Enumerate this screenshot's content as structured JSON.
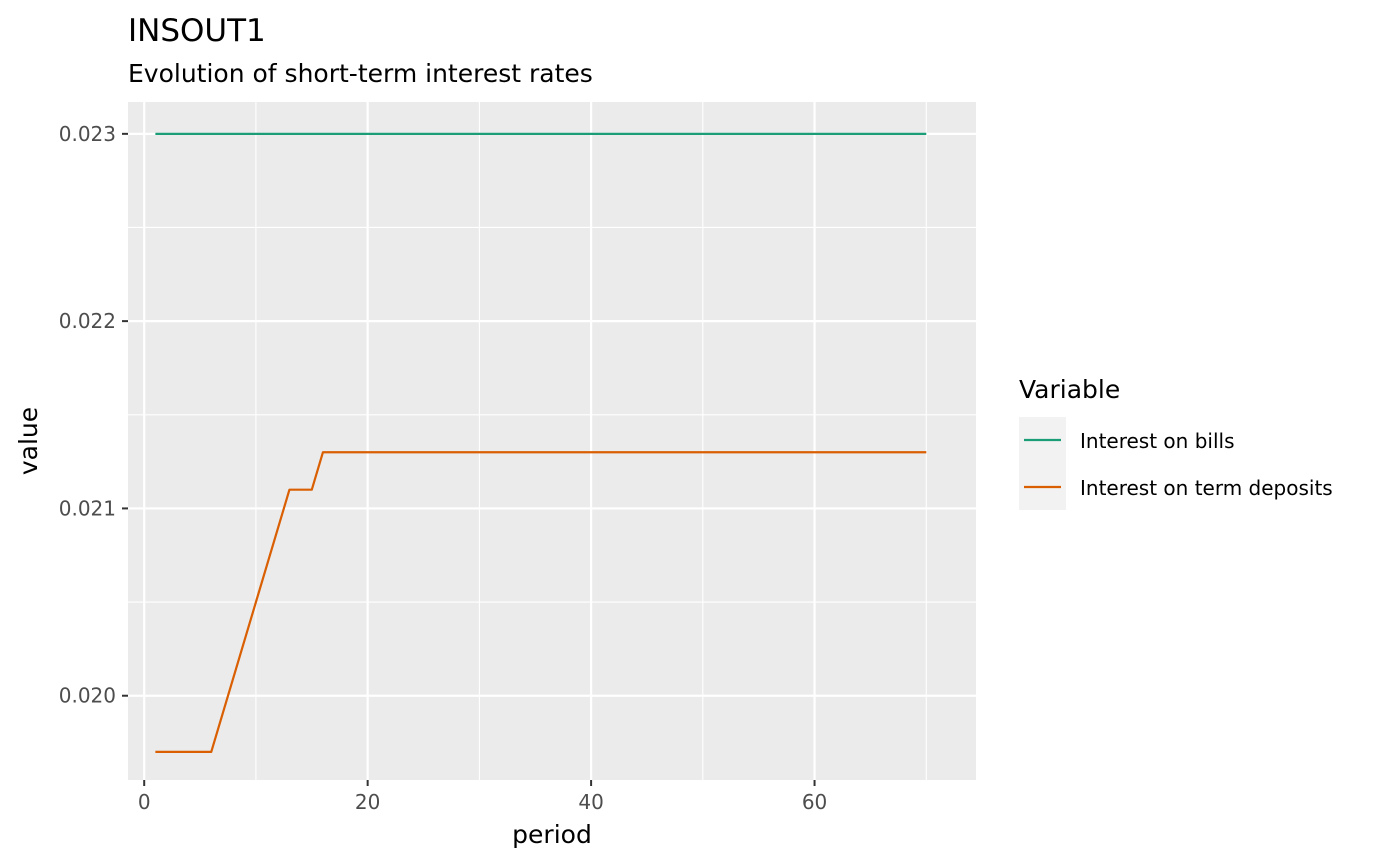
{
  "chart_data": {
    "type": "line",
    "title": "INSOUT1",
    "subtitle": "Evolution of short-term interest rates",
    "xlabel": "period",
    "ylabel": "value",
    "xlim": [
      -1.45,
      74.45
    ],
    "ylim": [
      0.01955,
      0.02317
    ],
    "x_ticks": [
      {
        "value": 0,
        "label": "0"
      },
      {
        "value": 20,
        "label": "20"
      },
      {
        "value": 40,
        "label": "40"
      },
      {
        "value": 60,
        "label": "60"
      }
    ],
    "x_minor_ticks": [
      10,
      30,
      50,
      70
    ],
    "y_ticks": [
      {
        "value": 0.02,
        "label": "0.020"
      },
      {
        "value": 0.021,
        "label": "0.021"
      },
      {
        "value": 0.022,
        "label": "0.022"
      },
      {
        "value": 0.023,
        "label": "0.023"
      }
    ],
    "y_minor_ticks": [
      0.0205,
      0.0215,
      0.0225
    ],
    "grid": true,
    "legend": {
      "title": "Variable",
      "position": "right"
    },
    "series": [
      {
        "name": "Interest on bills",
        "color": "#1b9e77",
        "points": [
          [
            1,
            0.023
          ],
          [
            70,
            0.023
          ]
        ]
      },
      {
        "name": "Interest on term deposits",
        "color": "#d95f02",
        "points": [
          [
            1,
            0.0197
          ],
          [
            6,
            0.0197
          ],
          [
            13,
            0.0211
          ],
          [
            15,
            0.0211
          ],
          [
            16,
            0.0213
          ],
          [
            70,
            0.0213
          ]
        ]
      }
    ]
  }
}
